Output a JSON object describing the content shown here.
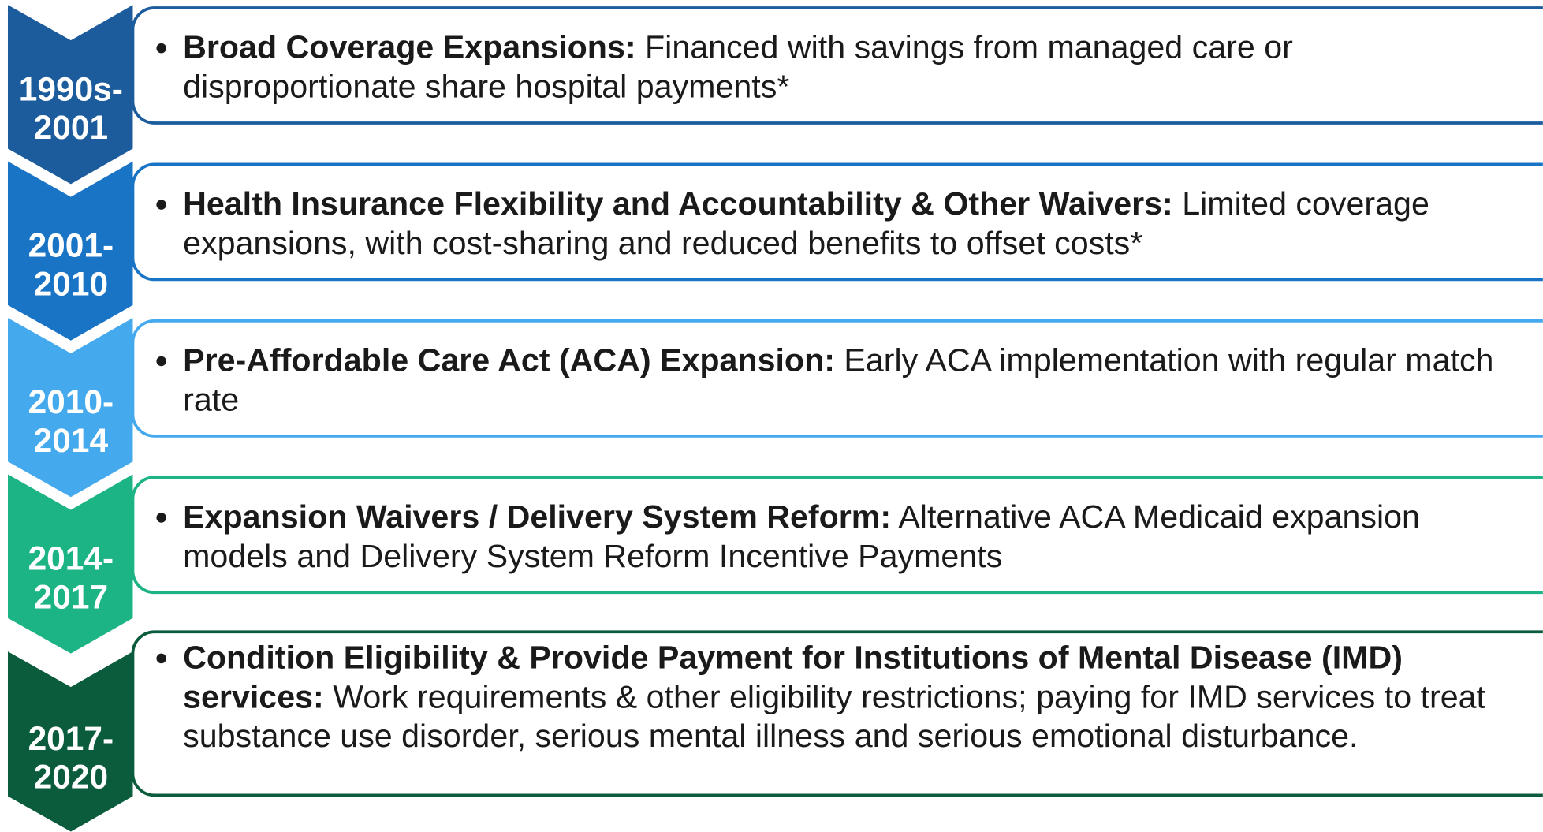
{
  "timeline": [
    {
      "period": "1990s-2001",
      "heading": "Broad Coverage Expansions:",
      "text": "Financed with savings from managed care or disproportionate share hospital payments*",
      "color": "#1c5c9c"
    },
    {
      "period": "2001-2010",
      "heading": "Health Insurance Flexibility and Accountability & Other Waivers:",
      "text": "Limited coverage expansions, with cost-sharing and reduced benefits to offset costs*",
      "color": "#1a74c6"
    },
    {
      "period": "2010-2014",
      "heading": "Pre-Affordable Care Act (ACA) Expansion:",
      "text": "Early ACA implementation with regular match rate",
      "color": "#45a9ee"
    },
    {
      "period": "2014-2017",
      "heading": "Expansion Waivers / Delivery System Reform:",
      "text": "Alternative ACA Medicaid expansion models and Delivery System Reform Incentive Payments",
      "color": "#1cb385"
    },
    {
      "period": "2017-2020",
      "heading": "Condition Eligibility & Provide Payment for Institutions of Mental Disease (IMD) services:",
      "text": "Work requirements & other eligibility restrictions; paying for IMD services to treat substance use disorder, serious mental illness and serious emotional disturbance.",
      "color": "#0b5c3c"
    }
  ]
}
